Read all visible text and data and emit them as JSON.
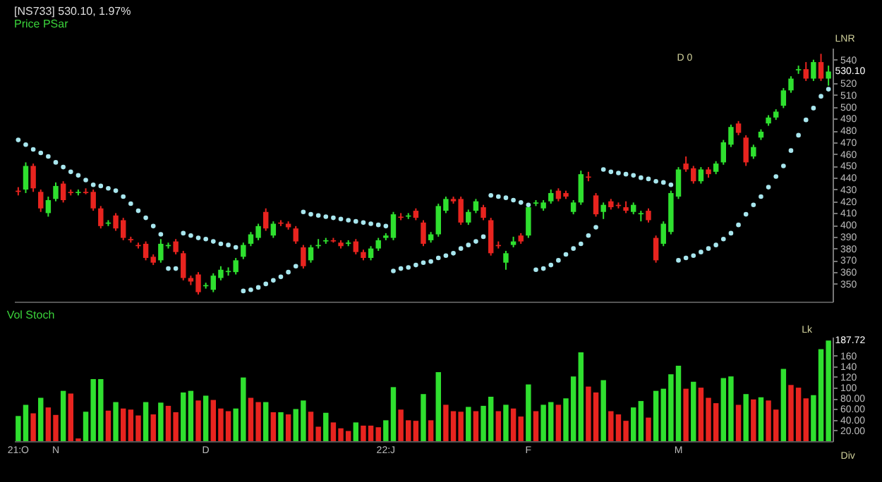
{
  "chart_data": [
    {
      "type": "candlestick",
      "title": "[NS733] 530.10, 1.97%",
      "subtitle": "Price PSar",
      "categories": [
        null,
        null,
        null,
        null,
        null,
        null,
        null,
        null,
        null,
        null,
        null,
        null,
        null,
        null,
        null,
        null,
        null,
        null,
        null,
        null,
        null,
        null,
        null,
        null,
        null,
        null,
        null,
        null,
        null,
        null,
        null,
        null,
        null,
        null,
        null,
        null,
        null,
        null,
        null,
        null,
        null,
        null,
        null,
        null,
        null,
        null,
        null,
        null,
        null,
        null,
        null,
        null,
        null,
        null,
        null,
        null,
        null,
        null,
        null,
        null,
        null,
        null,
        null,
        null,
        null,
        null,
        null,
        null,
        null,
        null,
        null,
        null,
        null,
        null,
        null,
        null,
        null,
        null,
        null,
        null,
        null,
        null,
        null,
        null,
        null,
        null,
        null,
        null,
        null,
        null,
        null,
        null,
        null,
        null,
        null,
        null,
        null,
        null,
        null,
        null,
        null,
        null,
        null,
        null,
        null,
        null,
        null,
        null,
        null
      ],
      "ohlc": [
        [
          429,
          432,
          425,
          428
        ],
        [
          430,
          453,
          427,
          450
        ],
        [
          450,
          452,
          428,
          431
        ],
        [
          428,
          430,
          411,
          414
        ],
        [
          410,
          424,
          407,
          421
        ],
        [
          422,
          436,
          420,
          433
        ],
        [
          435,
          437,
          419,
          421
        ],
        [
          428,
          430,
          425,
          427
        ],
        [
          427,
          430,
          425,
          428
        ],
        [
          428,
          431,
          426,
          427
        ],
        [
          428,
          430,
          412,
          414
        ],
        [
          414,
          416,
          397,
          399
        ],
        [
          401,
          404,
          399,
          402
        ],
        [
          408,
          410,
          395,
          397
        ],
        [
          404,
          406,
          387,
          389
        ],
        [
          388,
          390,
          385,
          387
        ],
        [
          383,
          385,
          380,
          382
        ],
        [
          384,
          386,
          370,
          372
        ],
        [
          373,
          375,
          366,
          368
        ],
        [
          370,
          388,
          368,
          384
        ],
        [
          382,
          385,
          380,
          383
        ],
        [
          386,
          388,
          375,
          377
        ],
        [
          376,
          378,
          353,
          355
        ],
        [
          355,
          357,
          349,
          352
        ],
        [
          358,
          360,
          341,
          343
        ],
        [
          348,
          351,
          346,
          349
        ],
        [
          345,
          359,
          343,
          357
        ],
        [
          355,
          365,
          353,
          362
        ],
        [
          360,
          364,
          357,
          361
        ],
        [
          360,
          372,
          358,
          370
        ],
        [
          373,
          385,
          371,
          383
        ],
        [
          384,
          394,
          382,
          392
        ],
        [
          389,
          401,
          387,
          399
        ],
        [
          411,
          414,
          395,
          397
        ],
        [
          391,
          403,
          389,
          401
        ],
        [
          402,
          404,
          399,
          401
        ],
        [
          401,
          403,
          396,
          398
        ],
        [
          397,
          399,
          384,
          386
        ],
        [
          381,
          383,
          363,
          365
        ],
        [
          370,
          383,
          368,
          381
        ],
        [
          382,
          388,
          380,
          383
        ],
        [
          386,
          389,
          384,
          387
        ],
        [
          387,
          389,
          385,
          386
        ],
        [
          385,
          387,
          380,
          382
        ],
        [
          384,
          387,
          382,
          385
        ],
        [
          386,
          388,
          375,
          377
        ],
        [
          377,
          379,
          370,
          372
        ],
        [
          372,
          382,
          370,
          380
        ],
        [
          380,
          389,
          378,
          387
        ],
        [
          389,
          393,
          387,
          391
        ],
        [
          389,
          411,
          387,
          409
        ],
        [
          407,
          410,
          404,
          406
        ],
        [
          407,
          410,
          405,
          408
        ],
        [
          412,
          414,
          404,
          406
        ],
        [
          402,
          404,
          382,
          384
        ],
        [
          387,
          394,
          385,
          392
        ],
        [
          392,
          418,
          390,
          416
        ],
        [
          412,
          424,
          410,
          422
        ],
        [
          422,
          424,
          418,
          420
        ],
        [
          422,
          424,
          400,
          402
        ],
        [
          402,
          413,
          400,
          411
        ],
        [
          412,
          422,
          410,
          420
        ],
        [
          415,
          417,
          404,
          406
        ],
        [
          404,
          406,
          374,
          376
        ],
        [
          383,
          386,
          380,
          382
        ],
        [
          368,
          378,
          362,
          376
        ],
        [
          383,
          390,
          381,
          386
        ],
        [
          391,
          393,
          384,
          386
        ],
        [
          391,
          417,
          389,
          415
        ],
        [
          418,
          421,
          416,
          419
        ],
        [
          414,
          421,
          412,
          419
        ],
        [
          420,
          430,
          418,
          427
        ],
        [
          429,
          431,
          420,
          422
        ],
        [
          427,
          429,
          422,
          424
        ],
        [
          411,
          421,
          409,
          419
        ],
        [
          419,
          446,
          417,
          443
        ],
        [
          441,
          445,
          437,
          440
        ],
        [
          425,
          427,
          407,
          409
        ],
        [
          411,
          419,
          405,
          417
        ],
        [
          420,
          422,
          413,
          415
        ],
        [
          417,
          419,
          414,
          416
        ],
        [
          415,
          420,
          410,
          412
        ],
        [
          411,
          419,
          409,
          417
        ],
        [
          409,
          412,
          403,
          410
        ],
        [
          412,
          414,
          402,
          404
        ],
        [
          389,
          391,
          368,
          370
        ],
        [
          384,
          403,
          382,
          401
        ],
        [
          394,
          429,
          392,
          427
        ],
        [
          424,
          449,
          422,
          447
        ],
        [
          452,
          458,
          445,
          447
        ],
        [
          448,
          450,
          435,
          437
        ],
        [
          437,
          449,
          435,
          447
        ],
        [
          447,
          449,
          440,
          443
        ],
        [
          445,
          454,
          443,
          452
        ],
        [
          453,
          472,
          451,
          470
        ],
        [
          468,
          485,
          466,
          483
        ],
        [
          486,
          488,
          476,
          478
        ],
        [
          474,
          476,
          450,
          453
        ],
        [
          458,
          468,
          456,
          466
        ],
        [
          474,
          481,
          472,
          479
        ],
        [
          486,
          493,
          484,
          491
        ],
        [
          491,
          498,
          489,
          496
        ],
        [
          501,
          516,
          499,
          514
        ],
        [
          514,
          526,
          512,
          524
        ],
        [
          531,
          535,
          528,
          532
        ],
        [
          532,
          538,
          522,
          524
        ],
        [
          524,
          540,
          522,
          538
        ],
        [
          538,
          545,
          522,
          524
        ],
        [
          524,
          535,
          518,
          530
        ]
      ],
      "colors": [
        "#e8241f",
        "#2fe02f",
        "#e8241f",
        "#e8241f",
        "#2fe02f",
        "#2fe02f",
        "#e8241f",
        "#e8241f",
        "#2fe02f",
        "#e8241f",
        "#e8241f",
        "#e8241f",
        "#2fe02f",
        "#e8241f",
        "#e8241f",
        "#e8241f",
        "#e8241f",
        "#e8241f",
        "#e8241f",
        "#2fe02f",
        "#2fe02f",
        "#e8241f",
        "#e8241f",
        "#e8241f",
        "#e8241f",
        "#2fe02f",
        "#2fe02f",
        "#2fe02f",
        "#2fe02f",
        "#2fe02f",
        "#2fe02f",
        "#2fe02f",
        "#2fe02f",
        "#e8241f",
        "#2fe02f",
        "#e8241f",
        "#e8241f",
        "#e8241f",
        "#e8241f",
        "#2fe02f",
        "#2fe02f",
        "#2fe02f",
        "#e8241f",
        "#e8241f",
        "#2fe02f",
        "#e8241f",
        "#e8241f",
        "#2fe02f",
        "#2fe02f",
        "#2fe02f",
        "#2fe02f",
        "#e8241f",
        "#2fe02f",
        "#e8241f",
        "#e8241f",
        "#2fe02f",
        "#2fe02f",
        "#2fe02f",
        "#e8241f",
        "#e8241f",
        "#2fe02f",
        "#2fe02f",
        "#e8241f",
        "#e8241f",
        "#e8241f",
        "#2fe02f",
        "#2fe02f",
        "#e8241f",
        "#2fe02f",
        "#2fe02f",
        "#2fe02f",
        "#2fe02f",
        "#e8241f",
        "#e8241f",
        "#2fe02f",
        "#2fe02f",
        "#e8241f",
        "#e8241f",
        "#2fe02f",
        "#e8241f",
        "#e8241f",
        "#e8241f",
        "#2fe02f",
        "#2fe02f",
        "#e8241f",
        "#e8241f",
        "#2fe02f",
        "#2fe02f",
        "#2fe02f",
        "#e8241f",
        "#e8241f",
        "#2fe02f",
        "#e8241f",
        "#2fe02f",
        "#2fe02f",
        "#2fe02f",
        "#e8241f",
        "#e8241f",
        "#2fe02f",
        "#2fe02f",
        "#2fe02f",
        "#2fe02f",
        "#2fe02f",
        "#2fe02f",
        "#2fe02f",
        "#e8241f",
        "#2fe02f",
        "#e8241f",
        "#2fe02f"
      ],
      "series": [
        {
          "type": "scatter",
          "color": "#a8e6ee",
          "values": [
            472,
            468,
            464,
            461,
            458,
            453,
            449,
            445,
            442,
            438,
            434,
            433,
            431,
            429,
            424,
            418,
            412,
            406,
            399,
            392,
            363,
            363,
            393,
            391,
            389,
            388,
            386,
            384,
            383,
            381,
            344,
            345,
            347,
            350,
            353,
            356,
            360,
            365,
            411,
            409,
            408,
            407,
            406,
            405,
            404,
            403,
            402,
            401,
            400,
            399,
            361,
            363,
            364,
            366,
            368,
            369,
            372,
            374,
            376,
            380,
            383,
            386,
            390,
            425,
            424,
            423,
            421,
            419,
            417,
            362,
            363,
            366,
            370,
            375,
            380,
            384,
            391,
            398,
            447,
            445,
            444,
            443,
            442,
            440,
            439,
            437,
            436,
            434,
            370,
            372,
            374,
            377,
            380,
            383,
            388,
            393,
            400,
            409,
            417,
            424,
            432,
            441,
            450,
            463,
            476,
            489,
            499,
            509,
            515
          ]
        }
      ],
      "marker": "circle",
      "ylim": [
        335,
        550
      ],
      "yticks": [
        350,
        360,
        370,
        380,
        390,
        400,
        410,
        420,
        430,
        440,
        450,
        460,
        470,
        480,
        490,
        500,
        510,
        520,
        540
      ],
      "tick_labels": "y",
      "annotations": [
        "D 0",
        "LNR",
        "530.10"
      ]
    },
    {
      "type": "bar",
      "title": "Vol Stoch",
      "categories": [
        "21:O",
        null,
        null,
        null,
        null,
        "N",
        null,
        null,
        null,
        null,
        null,
        null,
        null,
        null,
        null,
        null,
        null,
        null,
        null,
        null,
        null,
        null,
        null,
        null,
        null,
        "D",
        null,
        null,
        null,
        null,
        null,
        null,
        null,
        null,
        null,
        null,
        null,
        null,
        null,
        null,
        null,
        null,
        null,
        null,
        null,
        null,
        null,
        null,
        null,
        "22:J",
        null,
        null,
        null,
        null,
        null,
        null,
        null,
        null,
        null,
        null,
        null,
        null,
        null,
        null,
        null,
        null,
        null,
        null,
        "F",
        null,
        null,
        null,
        null,
        null,
        null,
        null,
        null,
        null,
        null,
        null,
        null,
        null,
        null,
        null,
        null,
        null,
        null,
        null,
        "M",
        null,
        null,
        null,
        null,
        null,
        null,
        null,
        null,
        null,
        null,
        null,
        null,
        null,
        null,
        null,
        null,
        null,
        null,
        null,
        null
      ],
      "values": [
        47,
        68,
        52,
        81,
        63,
        49,
        94,
        89,
        5,
        55,
        116,
        116,
        57,
        73,
        61,
        59,
        48,
        73,
        50,
        72,
        66,
        54,
        91,
        94,
        76,
        85,
        77,
        61,
        56,
        61,
        119,
        81,
        73,
        73,
        54,
        54,
        50,
        60,
        76,
        55,
        27,
        53,
        35,
        24,
        19,
        35,
        29,
        29,
        26,
        39,
        101,
        59,
        39,
        38,
        88,
        39,
        129,
        68,
        56,
        55,
        64,
        56,
        66,
        83,
        56,
        68,
        61,
        46,
        106,
        56,
        68,
        73,
        68,
        80,
        121,
        166,
        102,
        91,
        114,
        56,
        50,
        38,
        63,
        75,
        44,
        94,
        98,
        125,
        141,
        98,
        111,
        100,
        81,
        71,
        118,
        121,
        68,
        88,
        78,
        82,
        76,
        59,
        135,
        105,
        100,
        80,
        86,
        172,
        188
      ],
      "value_labels": [
        null,
        null,
        null,
        null,
        null,
        null,
        null,
        null,
        null,
        null,
        null,
        null,
        null,
        null,
        null,
        null,
        null,
        null,
        null,
        null,
        null,
        null,
        null,
        null,
        null,
        null,
        null,
        null,
        null,
        null,
        null,
        null,
        null,
        null,
        null,
        null,
        null,
        null,
        null,
        null,
        null,
        null,
        null,
        null,
        null,
        null,
        null,
        null,
        null,
        null,
        null,
        null,
        null,
        null,
        null,
        null,
        null,
        null,
        null,
        null,
        null,
        null,
        null,
        null,
        null,
        null,
        null,
        null,
        null,
        null,
        null,
        null,
        null,
        null,
        null,
        null,
        null,
        null,
        null,
        null,
        null,
        null,
        null,
        null,
        null,
        null,
        null,
        null,
        null,
        null,
        null,
        null,
        null,
        null,
        null,
        null,
        null,
        null,
        null,
        null,
        null,
        null,
        null,
        null,
        null,
        null,
        null,
        null,
        null
      ],
      "colors": [
        "#2fe02f",
        "#2fe02f",
        "#e8241f",
        "#2fe02f",
        "#e8241f",
        "#e8241f",
        "#2fe02f",
        "#e8241f",
        "#e8241f",
        "#2fe02f",
        "#2fe02f",
        "#2fe02f",
        "#e8241f",
        "#2fe02f",
        "#e8241f",
        "#e8241f",
        "#e8241f",
        "#2fe02f",
        "#e8241f",
        "#2fe02f",
        "#e8241f",
        "#e8241f",
        "#2fe02f",
        "#2fe02f",
        "#e8241f",
        "#2fe02f",
        "#e8241f",
        "#e8241f",
        "#e8241f",
        "#2fe02f",
        "#2fe02f",
        "#e8241f",
        "#e8241f",
        "#2fe02f",
        "#e8241f",
        "#2fe02f",
        "#e8241f",
        "#2fe02f",
        "#2fe02f",
        "#e8241f",
        "#e8241f",
        "#2fe02f",
        "#e8241f",
        "#e8241f",
        "#e8241f",
        "#2fe02f",
        "#e8241f",
        "#e8241f",
        "#e8241f",
        "#2fe02f",
        "#2fe02f",
        "#e8241f",
        "#e8241f",
        "#e8241f",
        "#2fe02f",
        "#e8241f",
        "#2fe02f",
        "#e8241f",
        "#e8241f",
        "#e8241f",
        "#2fe02f",
        "#e8241f",
        "#2fe02f",
        "#2fe02f",
        "#e8241f",
        "#2fe02f",
        "#e8241f",
        "#e8241f",
        "#2fe02f",
        "#e8241f",
        "#2fe02f",
        "#2fe02f",
        "#e8241f",
        "#2fe02f",
        "#2fe02f",
        "#2fe02f",
        "#e8241f",
        "#e8241f",
        "#2fe02f",
        "#e8241f",
        "#e8241f",
        "#e8241f",
        "#2fe02f",
        "#2fe02f",
        "#e8241f",
        "#2fe02f",
        "#2fe02f",
        "#2fe02f",
        "#2fe02f",
        "#e8241f",
        "#2fe02f",
        "#e8241f",
        "#e8241f",
        "#e8241f",
        "#2fe02f",
        "#2fe02f",
        "#e8241f",
        "#2fe02f",
        "#e8241f",
        "#2fe02f",
        "#e8241f",
        "#e8241f",
        "#2fe02f",
        "#e8241f",
        "#e8241f",
        "#e8241f",
        "#2fe02f",
        "#2fe02f",
        "#2fe02f"
      ],
      "ylim": [
        0,
        195
      ],
      "yticks": [
        {
          "value": 20,
          "label": "20.00"
        },
        {
          "value": 40,
          "label": "40.00"
        },
        {
          "value": 60,
          "label": "60.00"
        },
        {
          "value": 80,
          "label": "80.00"
        },
        100,
        120,
        140,
        160
      ],
      "annotations": [
        "Lk",
        "Div",
        "187.72"
      ]
    }
  ]
}
